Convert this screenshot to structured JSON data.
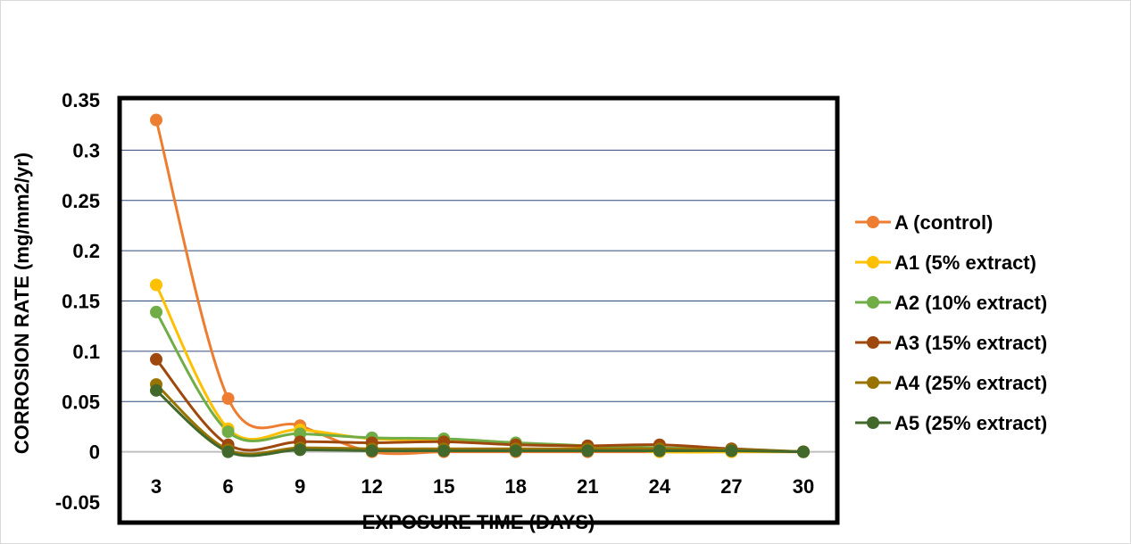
{
  "chart_data": {
    "type": "line",
    "title": "",
    "xlabel": "EXPOSURE TIME (DAYS)",
    "ylabel": "CORROSION RATE (mg/mm2/yr)",
    "x": [
      3,
      6,
      9,
      12,
      15,
      18,
      21,
      24,
      27,
      30
    ],
    "x_tick_labels": [
      "3",
      "6",
      "9",
      "12",
      "15",
      "18",
      "21",
      "24",
      "27",
      "30"
    ],
    "ylim": [
      -0.05,
      0.35
    ],
    "y_ticks": [
      -0.05,
      0,
      0.05,
      0.1,
      0.15,
      0.2,
      0.25,
      0.3,
      0.35
    ],
    "y_tick_labels": [
      "-0.05",
      "0",
      "0.05",
      "0.1",
      "0.15",
      "0.2",
      "0.25",
      "0.3",
      "0.35"
    ],
    "grid": true,
    "smoothed": true,
    "legend_position": "right",
    "series": [
      {
        "name": "A (control)",
        "color": "#ED7D31",
        "values": [
          0.33,
          0.053,
          0.026,
          0.0,
          0.0,
          0.0,
          0.0,
          0.0,
          0.0,
          0.0
        ]
      },
      {
        "name": "A1 (5% extract)",
        "color": "#FFC000",
        "values": [
          0.166,
          0.023,
          0.022,
          0.013,
          0.012,
          0.008,
          0.005,
          0.0,
          0.0,
          0.0
        ]
      },
      {
        "name": "A2 (10% extract)",
        "color": "#70AD47",
        "values": [
          0.139,
          0.02,
          0.018,
          0.014,
          0.013,
          0.009,
          0.006,
          0.004,
          0.003,
          0.0
        ]
      },
      {
        "name": "A3 (15% extract)",
        "color": "#9E480E",
        "values": [
          0.092,
          0.007,
          0.01,
          0.009,
          0.01,
          0.007,
          0.006,
          0.007,
          0.003,
          0.0
        ]
      },
      {
        "name": "A4 (25% extract)",
        "color": "#997300",
        "values": [
          0.067,
          0.002,
          0.004,
          0.003,
          0.003,
          0.003,
          0.003,
          0.003,
          0.002,
          0.0
        ]
      },
      {
        "name": "A5 (25% extract)",
        "color": "#43682B",
        "values": [
          0.061,
          0.0,
          0.002,
          0.001,
          0.001,
          0.001,
          0.001,
          0.001,
          0.001,
          0.0
        ]
      }
    ]
  }
}
